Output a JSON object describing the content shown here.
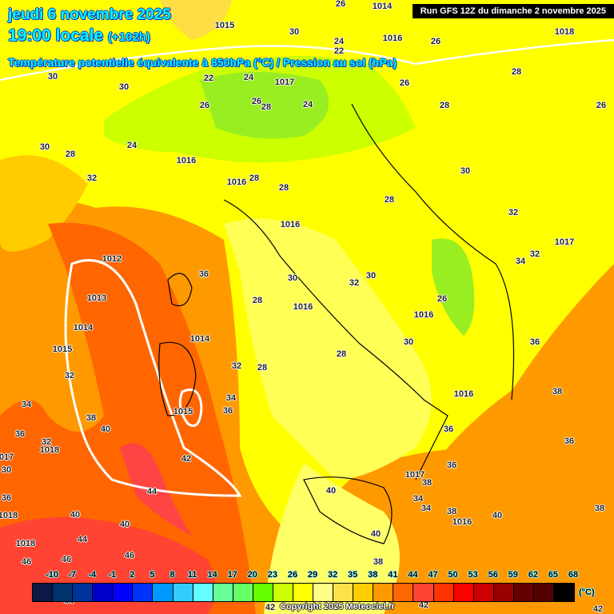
{
  "header": {
    "date": "jeudi 6 novembre 2025",
    "time": "19:00 locale",
    "lead": "(+102h)",
    "parameter": "Température potentielle équivalente à 850hPa (°C) / Pression au sol (hPa)",
    "run": "Run GFS 12Z du dimanche 2 novembre 2025"
  },
  "legend": {
    "unit": "(°C)",
    "ticks": [
      "-10",
      "-7",
      "-4",
      "-1",
      "2",
      "5",
      "8",
      "11",
      "14",
      "17",
      "20",
      "23",
      "26",
      "29",
      "32",
      "35",
      "38",
      "41",
      "44",
      "47",
      "50",
      "53",
      "56",
      "59",
      "62",
      "65",
      "68"
    ],
    "colors": [
      "#0a1a44",
      "#00336e",
      "#003399",
      "#0000cc",
      "#0000ff",
      "#0033ff",
      "#0099ff",
      "#33ccff",
      "#66ffff",
      "#66ff99",
      "#66ff66",
      "#66ff00",
      "#ccff00",
      "#ffff00",
      "#ffff88",
      "#ffe14b",
      "#ffcc00",
      "#ff9900",
      "#ff6600",
      "#ff4433",
      "#ff3300",
      "#ff0000",
      "#cc0000",
      "#990000",
      "#660000",
      "#550000",
      "#000000"
    ]
  },
  "copyright": "Copyright 2025 Meteociel.fr",
  "map_labels": {
    "temperature": [
      "30",
      "26",
      "24",
      "22",
      "26",
      "28",
      "26",
      "28",
      "26",
      "30",
      "24",
      "22",
      "26",
      "26",
      "28",
      "24",
      "24",
      "30",
      "28",
      "32",
      "28",
      "28",
      "30",
      "28",
      "32",
      "32",
      "34",
      "36",
      "30",
      "32",
      "30",
      "26",
      "28",
      "28",
      "30",
      "36",
      "32",
      "28",
      "32",
      "34",
      "36",
      "34",
      "38",
      "40",
      "36",
      "32",
      "42",
      "36",
      "38",
      "36",
      "36",
      "38",
      "40",
      "34",
      "34",
      "38",
      "40",
      "38",
      "36",
      "44",
      "40",
      "40",
      "44",
      "46",
      "46",
      "40",
      "38",
      "46",
      "30",
      "30",
      "42",
      "42",
      "44",
      "42"
    ],
    "pressure": [
      "1015",
      "1014",
      "1016",
      "1018",
      "1017",
      "1016",
      "1016",
      "1016",
      "1017",
      "1012",
      "1013",
      "1014",
      "1015",
      "1014",
      "1016",
      "1016",
      "1015",
      "1016",
      "1018",
      "1017",
      "1017",
      "1016",
      "1018",
      "1018",
      "1015"
    ]
  }
}
